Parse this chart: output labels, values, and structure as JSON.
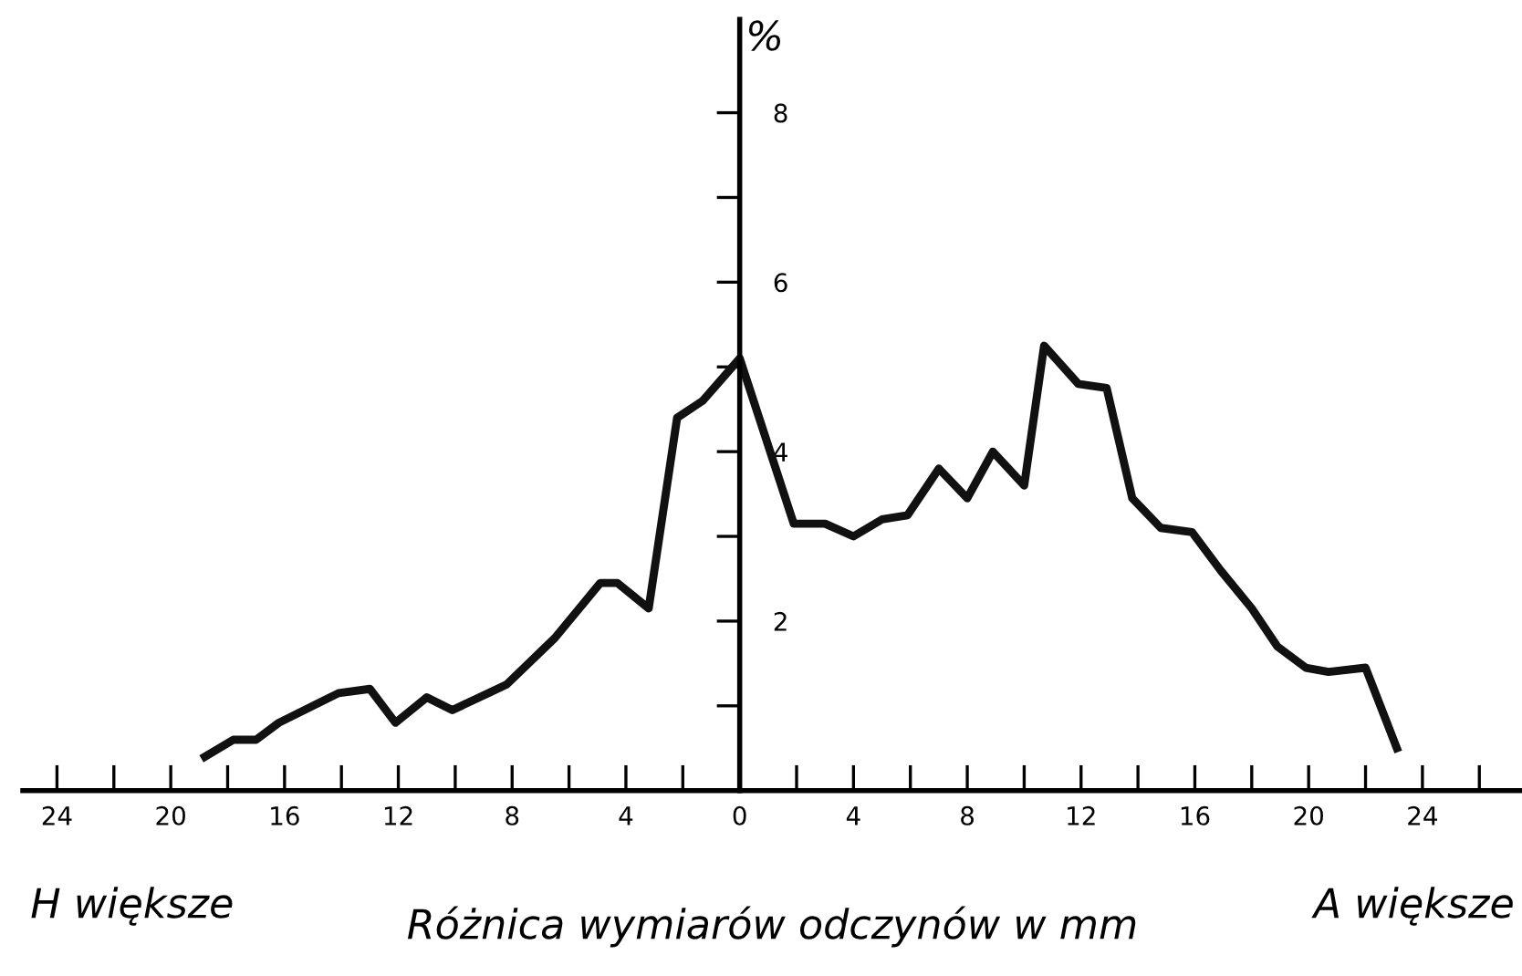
{
  "chart_data": {
    "type": "line",
    "xlabel": "Różnica wymiarów odczynów w mm",
    "ylabel": "%",
    "annotations": [
      "H większe",
      "A większe"
    ],
    "series": [
      {
        "color": "#111111",
        "x": [
          -18.8,
          -17.8,
          -17.0,
          -16.2,
          -14.1,
          -13.0,
          -12.1,
          -11.0,
          -10.1,
          -8.2,
          -6.5,
          -4.9,
          -4.3,
          -3.2,
          -2.2,
          -1.3,
          0,
          1.9,
          3.0,
          4.0,
          5.0,
          5.9,
          7.0,
          8.0,
          8.9,
          10.0,
          10.7,
          11.9,
          12.9,
          13.8,
          14.8,
          15.9,
          16.9,
          18.0,
          18.9,
          19.9,
          20.7,
          22.0,
          23.1
        ],
        "values": [
          0.4,
          0.6,
          0.6,
          0.8,
          1.15,
          1.2,
          0.8,
          1.1,
          0.95,
          1.25,
          1.8,
          2.45,
          2.45,
          2.15,
          4.4,
          4.6,
          5.1,
          3.15,
          3.15,
          3.0,
          3.2,
          3.25,
          3.8,
          3.45,
          4.0,
          3.6,
          5.25,
          4.8,
          4.75,
          3.45,
          3.1,
          3.05,
          2.6,
          2.15,
          1.7,
          1.45,
          1.4,
          1.45,
          0.5
        ]
      }
    ],
    "xlim": [
      -25.2,
      27.5
    ],
    "ylim": [
      0,
      9.1
    ],
    "xticks": [
      {
        "value": -24,
        "label": "24"
      },
      {
        "value": -22,
        "label": null
      },
      {
        "value": -20,
        "label": "20"
      },
      {
        "value": -18,
        "label": null
      },
      {
        "value": -16,
        "label": "16"
      },
      {
        "value": -14,
        "label": null
      },
      {
        "value": -12,
        "label": "12"
      },
      {
        "value": -10,
        "label": null
      },
      {
        "value": -8,
        "label": "8"
      },
      {
        "value": -6,
        "label": null
      },
      {
        "value": -4,
        "label": "4"
      },
      {
        "value": -2,
        "label": null
      },
      0,
      {
        "value": 2,
        "label": null
      },
      4,
      {
        "value": 6,
        "label": null
      },
      8,
      {
        "value": 10,
        "label": null
      },
      12,
      {
        "value": 14,
        "label": null
      },
      16,
      {
        "value": 18,
        "label": null
      },
      20,
      {
        "value": 22,
        "label": null
      },
      24,
      {
        "value": 26,
        "label": null
      }
    ],
    "yticks": [
      {
        "value": 1,
        "label": null
      },
      2,
      {
        "value": 3,
        "label": null
      },
      4,
      {
        "value": 5,
        "label": null
      },
      6,
      {
        "value": 7,
        "label": null
      },
      8
    ],
    "grid": false,
    "legend": false,
    "marker": "none",
    "line_style": "solid"
  }
}
